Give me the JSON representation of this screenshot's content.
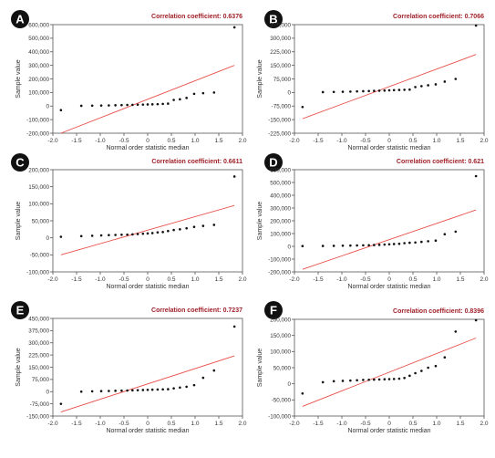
{
  "chart_data": [
    {
      "panel": "A",
      "type": "scatter",
      "correlation_label": "Correlation coefficient: 0.6376",
      "xlabel": "Normal order statistic median",
      "ylabel": "Sample value",
      "xlim": [
        -2.0,
        2.0
      ],
      "ylim": [
        -200000,
        600000
      ],
      "xticks": [
        -2.0,
        -1.5,
        -1.0,
        -0.5,
        0,
        0.5,
        1.0,
        1.5,
        2.0
      ],
      "xtick_labels": [
        "-2.0",
        "-1.5",
        "-1.0",
        "-0.5",
        "0",
        "0.5",
        "1.0",
        "1.5",
        "2.0"
      ],
      "yticks": [
        -200000,
        -100000,
        0,
        100000,
        200000,
        300000,
        400000,
        500000,
        600000
      ],
      "ytick_labels": [
        "-200,000",
        "-100,000",
        "0",
        "100,000",
        "200,000",
        "300,000",
        "400,000",
        "500,000",
        "600,000"
      ],
      "points": [
        [
          -1.83,
          -30000
        ],
        [
          -1.4,
          2000
        ],
        [
          -1.17,
          3000
        ],
        [
          -0.98,
          4000
        ],
        [
          -0.82,
          5000
        ],
        [
          -0.68,
          6000
        ],
        [
          -0.55,
          7000
        ],
        [
          -0.43,
          8000
        ],
        [
          -0.32,
          9000
        ],
        [
          -0.21,
          10000
        ],
        [
          -0.1,
          11000
        ],
        [
          0.0,
          12000
        ],
        [
          0.1,
          13000
        ],
        [
          0.21,
          14000
        ],
        [
          0.32,
          16000
        ],
        [
          0.43,
          18000
        ],
        [
          0.55,
          45000
        ],
        [
          0.68,
          50000
        ],
        [
          0.82,
          60000
        ],
        [
          0.98,
          90000
        ],
        [
          1.17,
          95000
        ],
        [
          1.4,
          100000
        ],
        [
          1.83,
          580000
        ]
      ],
      "fit_line": [
        [
          -1.83,
          -200000
        ],
        [
          1.83,
          300000
        ]
      ],
      "grid": false
    },
    {
      "panel": "B",
      "type": "scatter",
      "correlation_label": "Correlation coefficient: 0.7066",
      "xlabel": "Normal order statistic median",
      "ylabel": "Sample value",
      "xlim": [
        -2.0,
        2.0
      ],
      "ylim": [
        -225000,
        375000
      ],
      "xticks": [
        -2.0,
        -1.5,
        -1.0,
        -0.5,
        0,
        0.5,
        1.0,
        1.5,
        2.0
      ],
      "xtick_labels": [
        "-2.0",
        "-1.5",
        "-1.0",
        "-0.5",
        "0",
        "0.5",
        "1.0",
        "1.5",
        "2.0"
      ],
      "yticks": [
        -225000,
        -150000,
        -75000,
        0,
        75000,
        150000,
        225000,
        300000,
        375000
      ],
      "ytick_labels": [
        "-225,000",
        "-150,000",
        "-75,000",
        "0",
        "75,000",
        "150,000",
        "225,000",
        "300,000",
        "375,000"
      ],
      "points": [
        [
          -1.83,
          -80000
        ],
        [
          -1.4,
          2000
        ],
        [
          -1.17,
          3000
        ],
        [
          -0.98,
          4000
        ],
        [
          -0.82,
          5000
        ],
        [
          -0.68,
          6000
        ],
        [
          -0.55,
          7000
        ],
        [
          -0.43,
          8000
        ],
        [
          -0.32,
          9000
        ],
        [
          -0.21,
          10000
        ],
        [
          -0.1,
          11000
        ],
        [
          0.0,
          12000
        ],
        [
          0.1,
          13000
        ],
        [
          0.21,
          14000
        ],
        [
          0.32,
          15000
        ],
        [
          0.43,
          16000
        ],
        [
          0.55,
          30000
        ],
        [
          0.68,
          35000
        ],
        [
          0.82,
          40000
        ],
        [
          0.98,
          45000
        ],
        [
          1.17,
          60000
        ],
        [
          1.4,
          75000
        ],
        [
          1.83,
          375000
        ]
      ],
      "fit_line": [
        [
          -1.83,
          -145000
        ],
        [
          1.83,
          210000
        ]
      ],
      "grid": false
    },
    {
      "panel": "C",
      "type": "scatter",
      "correlation_label": "Correlation coefficient: 0.6611",
      "xlabel": "Normal order statistic median",
      "ylabel": "Sample value",
      "xlim": [
        -2.0,
        2.0
      ],
      "ylim": [
        -100000,
        200000
      ],
      "xticks": [
        -2.0,
        -1.5,
        -1.0,
        -0.5,
        0,
        0.5,
        1.0,
        1.5,
        2.0
      ],
      "xtick_labels": [
        "-2.0",
        "-1.5",
        "-1.0",
        "-0.5",
        "0",
        "0.5",
        "1.0",
        "1.5",
        "2.0"
      ],
      "yticks": [
        -100000,
        -50000,
        0,
        50000,
        100000,
        150000,
        200000
      ],
      "ytick_labels": [
        "-100,000",
        "-50,000",
        "0",
        "50,000",
        "100,000",
        "150,000",
        "200,000"
      ],
      "points": [
        [
          -1.83,
          3000
        ],
        [
          -1.4,
          5000
        ],
        [
          -1.17,
          6000
        ],
        [
          -0.98,
          7000
        ],
        [
          -0.82,
          8000
        ],
        [
          -0.68,
          8500
        ],
        [
          -0.55,
          9000
        ],
        [
          -0.43,
          9500
        ],
        [
          -0.32,
          10000
        ],
        [
          -0.21,
          11000
        ],
        [
          -0.1,
          12000
        ],
        [
          0.0,
          13000
        ],
        [
          0.1,
          14000
        ],
        [
          0.21,
          16000
        ],
        [
          0.32,
          17000
        ],
        [
          0.43,
          20000
        ],
        [
          0.55,
          23000
        ],
        [
          0.68,
          25000
        ],
        [
          0.82,
          28000
        ],
        [
          0.98,
          32000
        ],
        [
          1.17,
          35000
        ],
        [
          1.4,
          38000
        ],
        [
          1.83,
          180000
        ]
      ],
      "fit_line": [
        [
          -1.83,
          -50000
        ],
        [
          1.83,
          95000
        ]
      ],
      "grid": false
    },
    {
      "panel": "D",
      "type": "scatter",
      "correlation_label": "Correlation coefficient: 0.621",
      "xlabel": "Normal order statistic median",
      "ylabel": "Sample value",
      "xlim": [
        -2.0,
        2.0
      ],
      "ylim": [
        -200000,
        600000
      ],
      "xticks": [
        -2.0,
        -1.5,
        -1.0,
        -0.5,
        0,
        0.5,
        1.0,
        1.5,
        2.0
      ],
      "xtick_labels": [
        "-2.0",
        "-1.5",
        "-1.0",
        "-0.5",
        "0",
        "0.5",
        "1.0",
        "1.5",
        "2.0"
      ],
      "yticks": [
        -200000,
        -100000,
        0,
        100000,
        200000,
        300000,
        400000,
        500000,
        600000
      ],
      "ytick_labels": [
        "-200,000",
        "-100,000",
        "0",
        "100,000",
        "200,000",
        "300,000",
        "400,000",
        "500,000",
        "600,000"
      ],
      "points": [
        [
          -1.83,
          2000
        ],
        [
          -1.4,
          3000
        ],
        [
          -1.17,
          4000
        ],
        [
          -0.98,
          5000
        ],
        [
          -0.82,
          6000
        ],
        [
          -0.68,
          7000
        ],
        [
          -0.55,
          8000
        ],
        [
          -0.43,
          9000
        ],
        [
          -0.32,
          10000
        ],
        [
          -0.21,
          12000
        ],
        [
          -0.1,
          14000
        ],
        [
          0.0,
          16000
        ],
        [
          0.1,
          18000
        ],
        [
          0.21,
          20000
        ],
        [
          0.32,
          25000
        ],
        [
          0.43,
          28000
        ],
        [
          0.55,
          30000
        ],
        [
          0.68,
          35000
        ],
        [
          0.82,
          40000
        ],
        [
          0.98,
          45000
        ],
        [
          1.17,
          95000
        ],
        [
          1.4,
          115000
        ],
        [
          1.83,
          550000
        ]
      ],
      "fit_line": [
        [
          -1.83,
          -180000
        ],
        [
          1.83,
          285000
        ]
      ],
      "grid": false
    },
    {
      "panel": "E",
      "type": "scatter",
      "correlation_label": "Correlation coefficient: 0.7237",
      "xlabel": "Normal order statistic median",
      "ylabel": "Sample value",
      "xlim": [
        -2.0,
        2.0
      ],
      "ylim": [
        -150000,
        450000
      ],
      "xticks": [
        -2.0,
        -1.5,
        -1.0,
        -0.5,
        0,
        0.5,
        1.0,
        1.5,
        2.0
      ],
      "xtick_labels": [
        "-2.0",
        "-1.5",
        "-1.0",
        "-0.5",
        "0",
        "0.5",
        "1.0",
        "1.5",
        "2.0"
      ],
      "yticks": [
        -150000,
        -75000,
        0,
        75000,
        150000,
        225000,
        300000,
        375000,
        450000
      ],
      "ytick_labels": [
        "-150,000",
        "-75,000",
        "0",
        "75,000",
        "150,000",
        "225,000",
        "300,000",
        "375,000",
        "450,000"
      ],
      "points": [
        [
          -1.83,
          -75000
        ],
        [
          -1.4,
          0
        ],
        [
          -1.17,
          2000
        ],
        [
          -0.98,
          3000
        ],
        [
          -0.82,
          4000
        ],
        [
          -0.68,
          5000
        ],
        [
          -0.55,
          6000
        ],
        [
          -0.43,
          7000
        ],
        [
          -0.32,
          8000
        ],
        [
          -0.21,
          9000
        ],
        [
          -0.1,
          10000
        ],
        [
          0.0,
          11000
        ],
        [
          0.1,
          12000
        ],
        [
          0.21,
          13000
        ],
        [
          0.32,
          14000
        ],
        [
          0.43,
          15000
        ],
        [
          0.55,
          20000
        ],
        [
          0.68,
          25000
        ],
        [
          0.82,
          30000
        ],
        [
          0.98,
          40000
        ],
        [
          1.17,
          85000
        ],
        [
          1.4,
          130000
        ],
        [
          1.83,
          400000
        ]
      ],
      "fit_line": [
        [
          -1.83,
          -125000
        ],
        [
          1.83,
          220000
        ]
      ],
      "grid": false
    },
    {
      "panel": "F",
      "type": "scatter",
      "correlation_label": "Correlation coefficient: 0.8396",
      "xlabel": "Normal order statistic median",
      "ylabel": "Sample value",
      "xlim": [
        -2.0,
        2.0
      ],
      "ylim": [
        -100000,
        200000
      ],
      "xticks": [
        -2.0,
        -1.5,
        -1.0,
        -0.5,
        0,
        0.5,
        1.0,
        1.5,
        2.0
      ],
      "xtick_labels": [
        "-2.0",
        "-1.5",
        "-1.0",
        "-0.5",
        "0",
        "0.5",
        "1.0",
        "1.5",
        "2.0"
      ],
      "yticks": [
        -100000,
        -50000,
        0,
        50000,
        100000,
        150000,
        200000
      ],
      "ytick_labels": [
        "-100,000",
        "-50,000",
        "0",
        "50,000",
        "100,000",
        "150,000",
        "200,000"
      ],
      "points": [
        [
          -1.83,
          -30000
        ],
        [
          -1.4,
          5000
        ],
        [
          -1.17,
          8000
        ],
        [
          -0.98,
          9000
        ],
        [
          -0.82,
          10000
        ],
        [
          -0.68,
          11000
        ],
        [
          -0.55,
          12000
        ],
        [
          -0.43,
          12500
        ],
        [
          -0.32,
          13000
        ],
        [
          -0.21,
          13500
        ],
        [
          -0.1,
          14000
        ],
        [
          0.0,
          14500
        ],
        [
          0.1,
          15000
        ],
        [
          0.21,
          16000
        ],
        [
          0.32,
          18000
        ],
        [
          0.43,
          25000
        ],
        [
          0.55,
          33000
        ],
        [
          0.68,
          40000
        ],
        [
          0.82,
          50000
        ],
        [
          0.98,
          55000
        ],
        [
          1.17,
          82000
        ],
        [
          1.4,
          162000
        ],
        [
          1.83,
          200000
        ]
      ],
      "fit_line": [
        [
          -1.83,
          -70000
        ],
        [
          1.83,
          142000
        ]
      ],
      "grid": false
    }
  ],
  "colors": {
    "points": "#111111",
    "fit_line": "#e8504a",
    "correlation_text": "#a0222a",
    "axis": "#555555",
    "label_badge_bg": "#111111",
    "label_badge_text": "#ffffff",
    "tick_text": "#333333"
  }
}
